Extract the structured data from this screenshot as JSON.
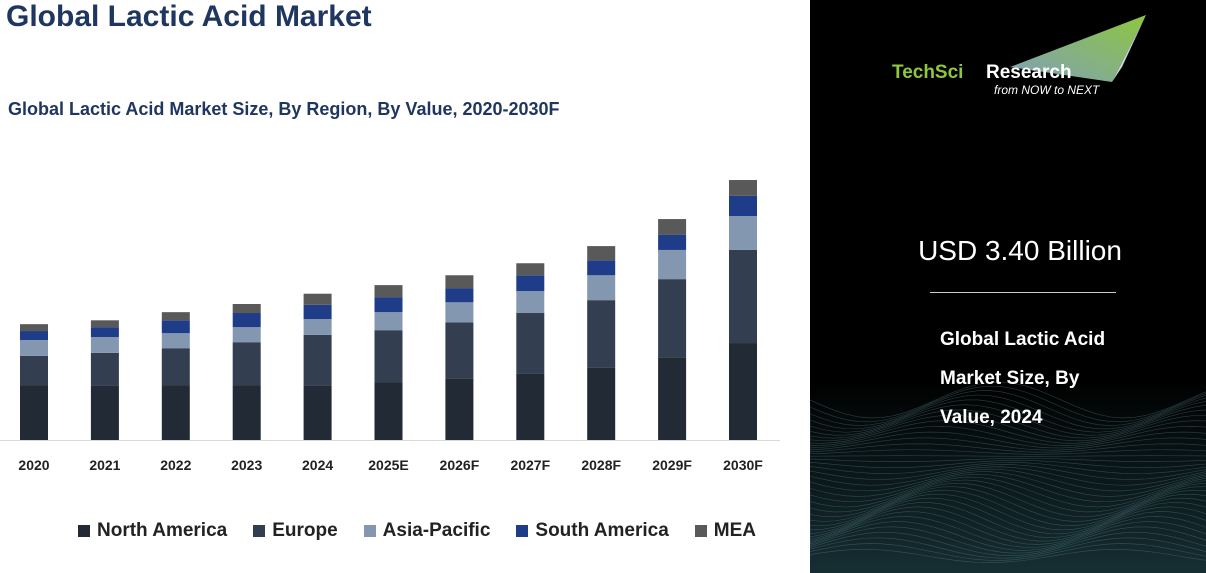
{
  "title": "Global Lactic Acid Market",
  "subtitle": "Global Lactic Acid Market Size, By Region, By Value, 2020-2030F",
  "side_panel": {
    "logo_text_green": "TechSci",
    "logo_text_white": "Research",
    "logo_tagline": "from NOW to NEXT",
    "value": "USD 3.40 Billion",
    "description_lines": [
      "Global Lactic Acid Market Size, By",
      "Value, 2024"
    ],
    "description": [
      "Global Lactic Acid",
      "Market Size, By",
      "Value, 2024"
    ]
  },
  "chart_data": {
    "type": "bar",
    "stacked": true,
    "title": "Global Lactic Acid Market Size, By Region, By Value, 2020-2030F",
    "xlabel": "",
    "ylabel": "",
    "y_axis_visible": false,
    "grid": false,
    "legend_position": "bottom",
    "categories": [
      "2020",
      "2021",
      "2022",
      "2023",
      "2024",
      "2025E",
      "2026F",
      "2027F",
      "2028F",
      "2029F",
      "2030F"
    ],
    "series": [
      {
        "name": "North America",
        "color": "#222a35",
        "values": [
          1.28,
          1.26,
          1.28,
          1.28,
          1.26,
          1.35,
          1.44,
          1.54,
          1.68,
          1.93,
          2.26
        ]
      },
      {
        "name": "Europe",
        "color": "#333f50",
        "values": [
          0.68,
          0.77,
          0.86,
          1.0,
          1.19,
          1.21,
          1.3,
          1.42,
          1.58,
          1.82,
          2.17
        ]
      },
      {
        "name": "Asia-Pacific",
        "color": "#8497b0",
        "values": [
          0.37,
          0.37,
          0.35,
          0.35,
          0.37,
          0.42,
          0.47,
          0.51,
          0.58,
          0.68,
          0.79
        ]
      },
      {
        "name": "South America",
        "color": "#1f3c88",
        "values": [
          0.21,
          0.23,
          0.3,
          0.33,
          0.33,
          0.35,
          0.33,
          0.37,
          0.35,
          0.35,
          0.47
        ]
      },
      {
        "name": "MEA",
        "color": "#595959",
        "values": [
          0.16,
          0.16,
          0.19,
          0.21,
          0.26,
          0.28,
          0.3,
          0.28,
          0.33,
          0.37,
          0.37
        ]
      }
    ]
  }
}
